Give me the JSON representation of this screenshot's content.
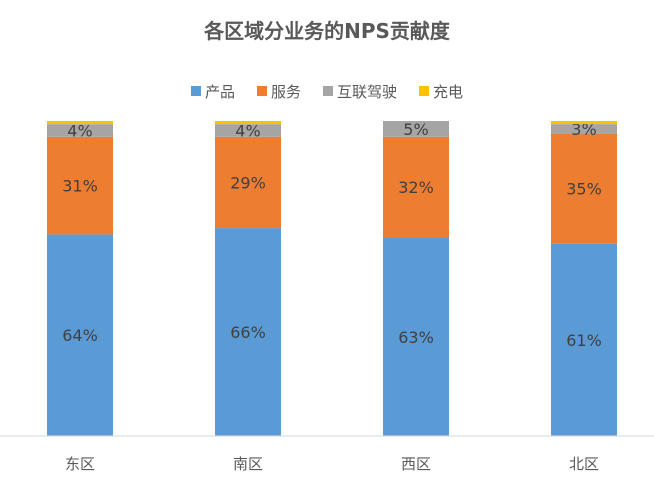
{
  "chart_data": {
    "type": "bar",
    "stacked": true,
    "normalized": true,
    "title": "各区域分业务的NPS贡献度",
    "categories": [
      "东区",
      "南区",
      "西区",
      "北区"
    ],
    "series": [
      {
        "name": "产品",
        "color": "#5B9BD5",
        "values": [
          64,
          66,
          63,
          61
        ],
        "labels": [
          "64%",
          "66%",
          "63%",
          "61%"
        ]
      },
      {
        "name": "服务",
        "color": "#ED7D31",
        "values": [
          31,
          29,
          32,
          35
        ],
        "labels": [
          "31%",
          "29%",
          "32%",
          "35%"
        ]
      },
      {
        "name": "互联驾驶",
        "color": "#A5A5A5",
        "values": [
          4,
          4,
          5,
          3
        ],
        "labels": [
          "4%",
          "4%",
          "5%",
          "3%"
        ]
      },
      {
        "name": "充电",
        "color": "#FFC000",
        "values": [
          1,
          1,
          0,
          1
        ],
        "labels": [
          "",
          "",
          "",
          ""
        ]
      }
    ],
    "ylim": [
      0,
      100
    ],
    "legend": "top",
    "grid": false
  }
}
